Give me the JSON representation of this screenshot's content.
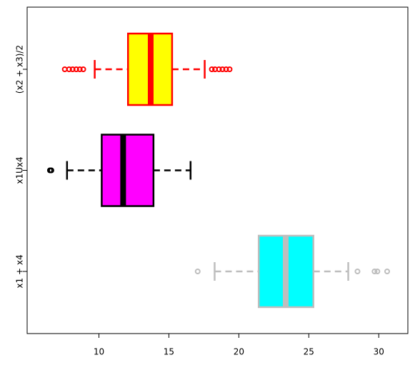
{
  "chart_data": {
    "type": "boxplot",
    "orientation": "horizontal",
    "categories": [
      "x1 + x4",
      "x1Ux4",
      "(x2 + x3)/2"
    ],
    "boxes": [
      {
        "fill": "#00ffff",
        "color": "#bebebe",
        "whislo": 18.27,
        "q1": 21.42,
        "med": 23.35,
        "q3": 25.33,
        "whishi": 27.82,
        "outliers": [
          17.06,
          28.48,
          29.7,
          29.9,
          30.6
        ]
      },
      {
        "fill": "#ff00ff",
        "color": "#000000",
        "whislo": 7.72,
        "q1": 10.2,
        "med": 11.73,
        "q3": 13.9,
        "whishi": 16.55,
        "outliers": [
          6.5,
          6.6
        ]
      },
      {
        "fill": "#ffff00",
        "color": "#ff0000",
        "whislo": 9.7,
        "q1": 12.08,
        "med": 13.7,
        "q3": 15.23,
        "whishi": 17.56,
        "outliers": [
          7.56,
          7.87,
          8.12,
          8.38,
          8.63,
          8.88,
          18.07,
          18.3,
          18.58,
          18.83,
          19.09,
          19.34
        ]
      }
    ],
    "xlim": [
      4.87,
      32.08
    ],
    "xticks": [
      10,
      15,
      20,
      25,
      30
    ]
  }
}
